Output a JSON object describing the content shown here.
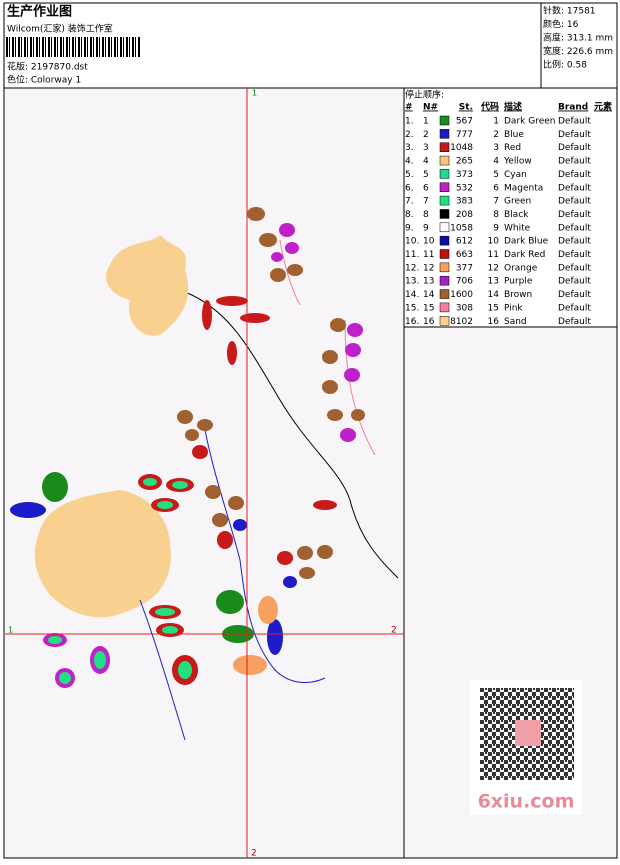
{
  "header": {
    "title": "生产作业图",
    "studio": "Wilcom(汇家) 装饰工作室",
    "design": "花版: 2197870.dst",
    "colorway": "色位: Colorway 1"
  },
  "stats": [
    "针数: 17581",
    "颜色: 16",
    "高度: 313.1 mm",
    "宽度: 226.6 mm",
    "比例: 0.58"
  ],
  "stop_sequence": {
    "title": "停止顺序:",
    "columns": [
      "#",
      "N#",
      "St.",
      "代码",
      "描述",
      "Brand",
      "元素"
    ],
    "rows": [
      {
        "index": "1.",
        "n": "1",
        "color": "#1a8a1a",
        "stitches": "567",
        "code": "1",
        "description": "Dark Green",
        "brand": "Default"
      },
      {
        "index": "2.",
        "n": "2",
        "color": "#1c1cc8",
        "stitches": "777",
        "code": "2",
        "description": "Blue",
        "brand": "Default"
      },
      {
        "index": "3.",
        "n": "3",
        "color": "#c81a1a",
        "stitches": "1048",
        "code": "3",
        "description": "Red",
        "brand": "Default"
      },
      {
        "index": "4.",
        "n": "4",
        "color": "#f5c880",
        "stitches": "265",
        "code": "4",
        "description": "Yellow",
        "brand": "Default"
      },
      {
        "index": "5.",
        "n": "5",
        "color": "#20d890",
        "stitches": "373",
        "code": "5",
        "description": "Cyan",
        "brand": "Default"
      },
      {
        "index": "6.",
        "n": "6",
        "color": "#c020c8",
        "stitches": "532",
        "code": "6",
        "description": "Magenta",
        "brand": "Default"
      },
      {
        "index": "7.",
        "n": "7",
        "color": "#20e080",
        "stitches": "383",
        "code": "7",
        "description": "Green",
        "brand": "Default"
      },
      {
        "index": "8.",
        "n": "8",
        "color": "#000000",
        "stitches": "208",
        "code": "8",
        "description": "Black",
        "brand": "Default"
      },
      {
        "index": "9.",
        "n": "9",
        "color": "#ffffff",
        "stitches": "1058",
        "code": "9",
        "description": "White",
        "brand": "Default"
      },
      {
        "index": "10.",
        "n": "10",
        "color": "#1010a0",
        "stitches": "612",
        "code": "10",
        "description": "Dark Blue",
        "brand": "Default"
      },
      {
        "index": "11.",
        "n": "11",
        "color": "#c01010",
        "stitches": "663",
        "code": "11",
        "description": "Dark Red",
        "brand": "Default"
      },
      {
        "index": "12.",
        "n": "12",
        "color": "#f8a060",
        "stitches": "377",
        "code": "12",
        "description": "Orange",
        "brand": "Default"
      },
      {
        "index": "13.",
        "n": "13",
        "color": "#a020c0",
        "stitches": "706",
        "code": "13",
        "description": "Purple",
        "brand": "Default"
      },
      {
        "index": "14.",
        "n": "14",
        "color": "#a06030",
        "stitches": "1600",
        "code": "14",
        "description": "Brown",
        "brand": "Default"
      },
      {
        "index": "15.",
        "n": "15",
        "color": "#f080a0",
        "stitches": "308",
        "code": "15",
        "description": "Pink",
        "brand": "Default"
      },
      {
        "index": "16.",
        "n": "16",
        "color": "#f8d090",
        "stitches": "8102",
        "code": "16",
        "description": "Sand",
        "brand": "Default"
      }
    ]
  },
  "axes": {
    "top": "1",
    "left": "1",
    "right": "2",
    "bottom": "2"
  },
  "watermark": "6xiu.com"
}
